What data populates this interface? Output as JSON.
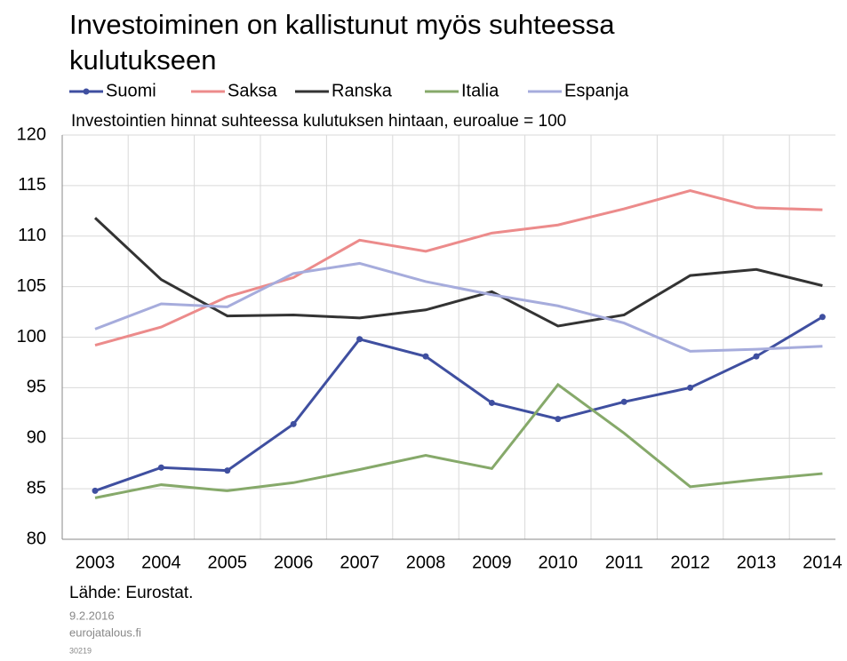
{
  "chart_data": {
    "type": "line",
    "title": "Investoiminen on kallistunut myös suhteessa kulutukseen",
    "subtitle": "Investointien hinnat suhteessa kulutuksen hintaan, euroalue = 100",
    "source": "Lähde: Eurostat.",
    "date": "9.2.2016",
    "site": "eurojatalous.fi",
    "code": "30219",
    "categories": [
      "2003",
      "2004",
      "2005",
      "2006",
      "2007",
      "2008",
      "2009",
      "2010",
      "2011",
      "2012",
      "2013",
      "2014"
    ],
    "series": [
      {
        "name": "Suomi",
        "color": "#3f4fa0",
        "markers": true,
        "values": [
          84.8,
          87.1,
          86.8,
          91.4,
          99.8,
          98.1,
          93.5,
          91.9,
          93.6,
          95.0,
          98.1,
          102.0
        ]
      },
      {
        "name": "Saksa",
        "color": "#ec8b8b",
        "values": [
          99.2,
          101.0,
          104.0,
          105.9,
          109.6,
          108.5,
          110.3,
          111.1,
          112.7,
          114.5,
          112.8,
          112.6
        ]
      },
      {
        "name": "Ranska",
        "color": "#333333",
        "values": [
          111.8,
          105.7,
          102.1,
          102.2,
          101.9,
          102.7,
          104.5,
          101.1,
          102.2,
          106.1,
          106.7,
          105.1
        ]
      },
      {
        "name": "Italia",
        "color": "#86a96a",
        "values": [
          84.1,
          85.4,
          84.8,
          85.6,
          86.9,
          88.3,
          87.0,
          95.3,
          90.5,
          85.2,
          85.9,
          86.5
        ]
      },
      {
        "name": "Espanja",
        "color": "#a6acdc",
        "values": [
          100.8,
          103.3,
          103.0,
          106.3,
          107.3,
          105.5,
          104.2,
          103.1,
          101.4,
          98.6,
          98.8,
          99.1
        ]
      }
    ],
    "ylim": [
      80,
      120
    ],
    "yticks": [
      80,
      85,
      90,
      95,
      100,
      105,
      110,
      115,
      120
    ],
    "grid": true
  }
}
